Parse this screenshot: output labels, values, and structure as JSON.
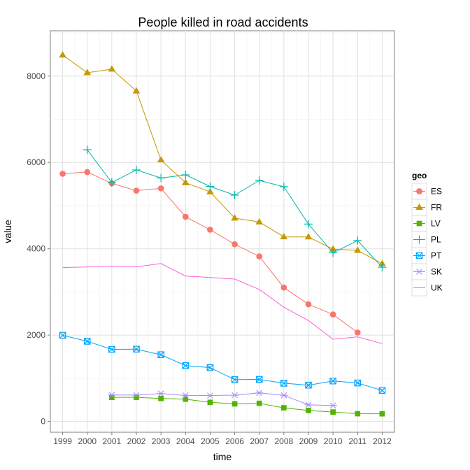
{
  "chart_data": {
    "type": "line",
    "title": "People killed in road accidents",
    "xlabel": "time",
    "ylabel": "value",
    "x": [
      1999,
      2000,
      2001,
      2002,
      2003,
      2004,
      2005,
      2006,
      2007,
      2008,
      2009,
      2010,
      2011,
      2012
    ],
    "xlim": [
      1998.5,
      2012.5
    ],
    "ylim": [
      -250,
      9050
    ],
    "y_ticks": [
      0,
      2000,
      4000,
      6000,
      8000
    ],
    "grid": true,
    "legend_title": "geo",
    "legend_position": "right",
    "series": [
      {
        "name": "ES",
        "color": "#F8766D",
        "marker": "circle",
        "values": [
          5738,
          5777,
          5517,
          5347,
          5399,
          4741,
          4442,
          4104,
          3823,
          3100,
          2714,
          2478,
          2060,
          null
        ]
      },
      {
        "name": "FR",
        "color": "#C49A00",
        "marker": "triangle",
        "values": [
          8487,
          8079,
          8160,
          7655,
          6058,
          5530,
          5318,
          4709,
          4620,
          4275,
          4273,
          3992,
          3963,
          3653
        ]
      },
      {
        "name": "LV",
        "color": "#53B400",
        "marker": "square",
        "values": [
          null,
          null,
          558,
          559,
          532,
          516,
          442,
          407,
          419,
          316,
          254,
          218,
          179,
          177
        ]
      },
      {
        "name": "PL",
        "color": "#00B6A7",
        "marker": "plus",
        "values": [
          null,
          6294,
          5534,
          5827,
          5640,
          5712,
          5444,
          5243,
          5583,
          5437,
          4572,
          3907,
          4189,
          3571
        ]
      },
      {
        "name": "PT",
        "color": "#00A5FF",
        "marker": "boxcross",
        "values": [
          1995,
          1857,
          1670,
          1675,
          1546,
          1294,
          1247,
          969,
          974,
          885,
          840,
          937,
          891,
          718
        ]
      },
      {
        "name": "SK",
        "color": "#A58AFF",
        "marker": "asterisk",
        "values": [
          null,
          null,
          614,
          610,
          645,
          603,
          600,
          608,
          661,
          606,
          384,
          371,
          null,
          null
        ]
      },
      {
        "name": "UK",
        "color": "#FB61D7",
        "marker": "none",
        "values": [
          3564,
          3580,
          3598,
          3581,
          3658,
          3368,
          3336,
          3298,
          3059,
          2645,
          2337,
          1905,
          1960,
          1802
        ]
      }
    ]
  }
}
